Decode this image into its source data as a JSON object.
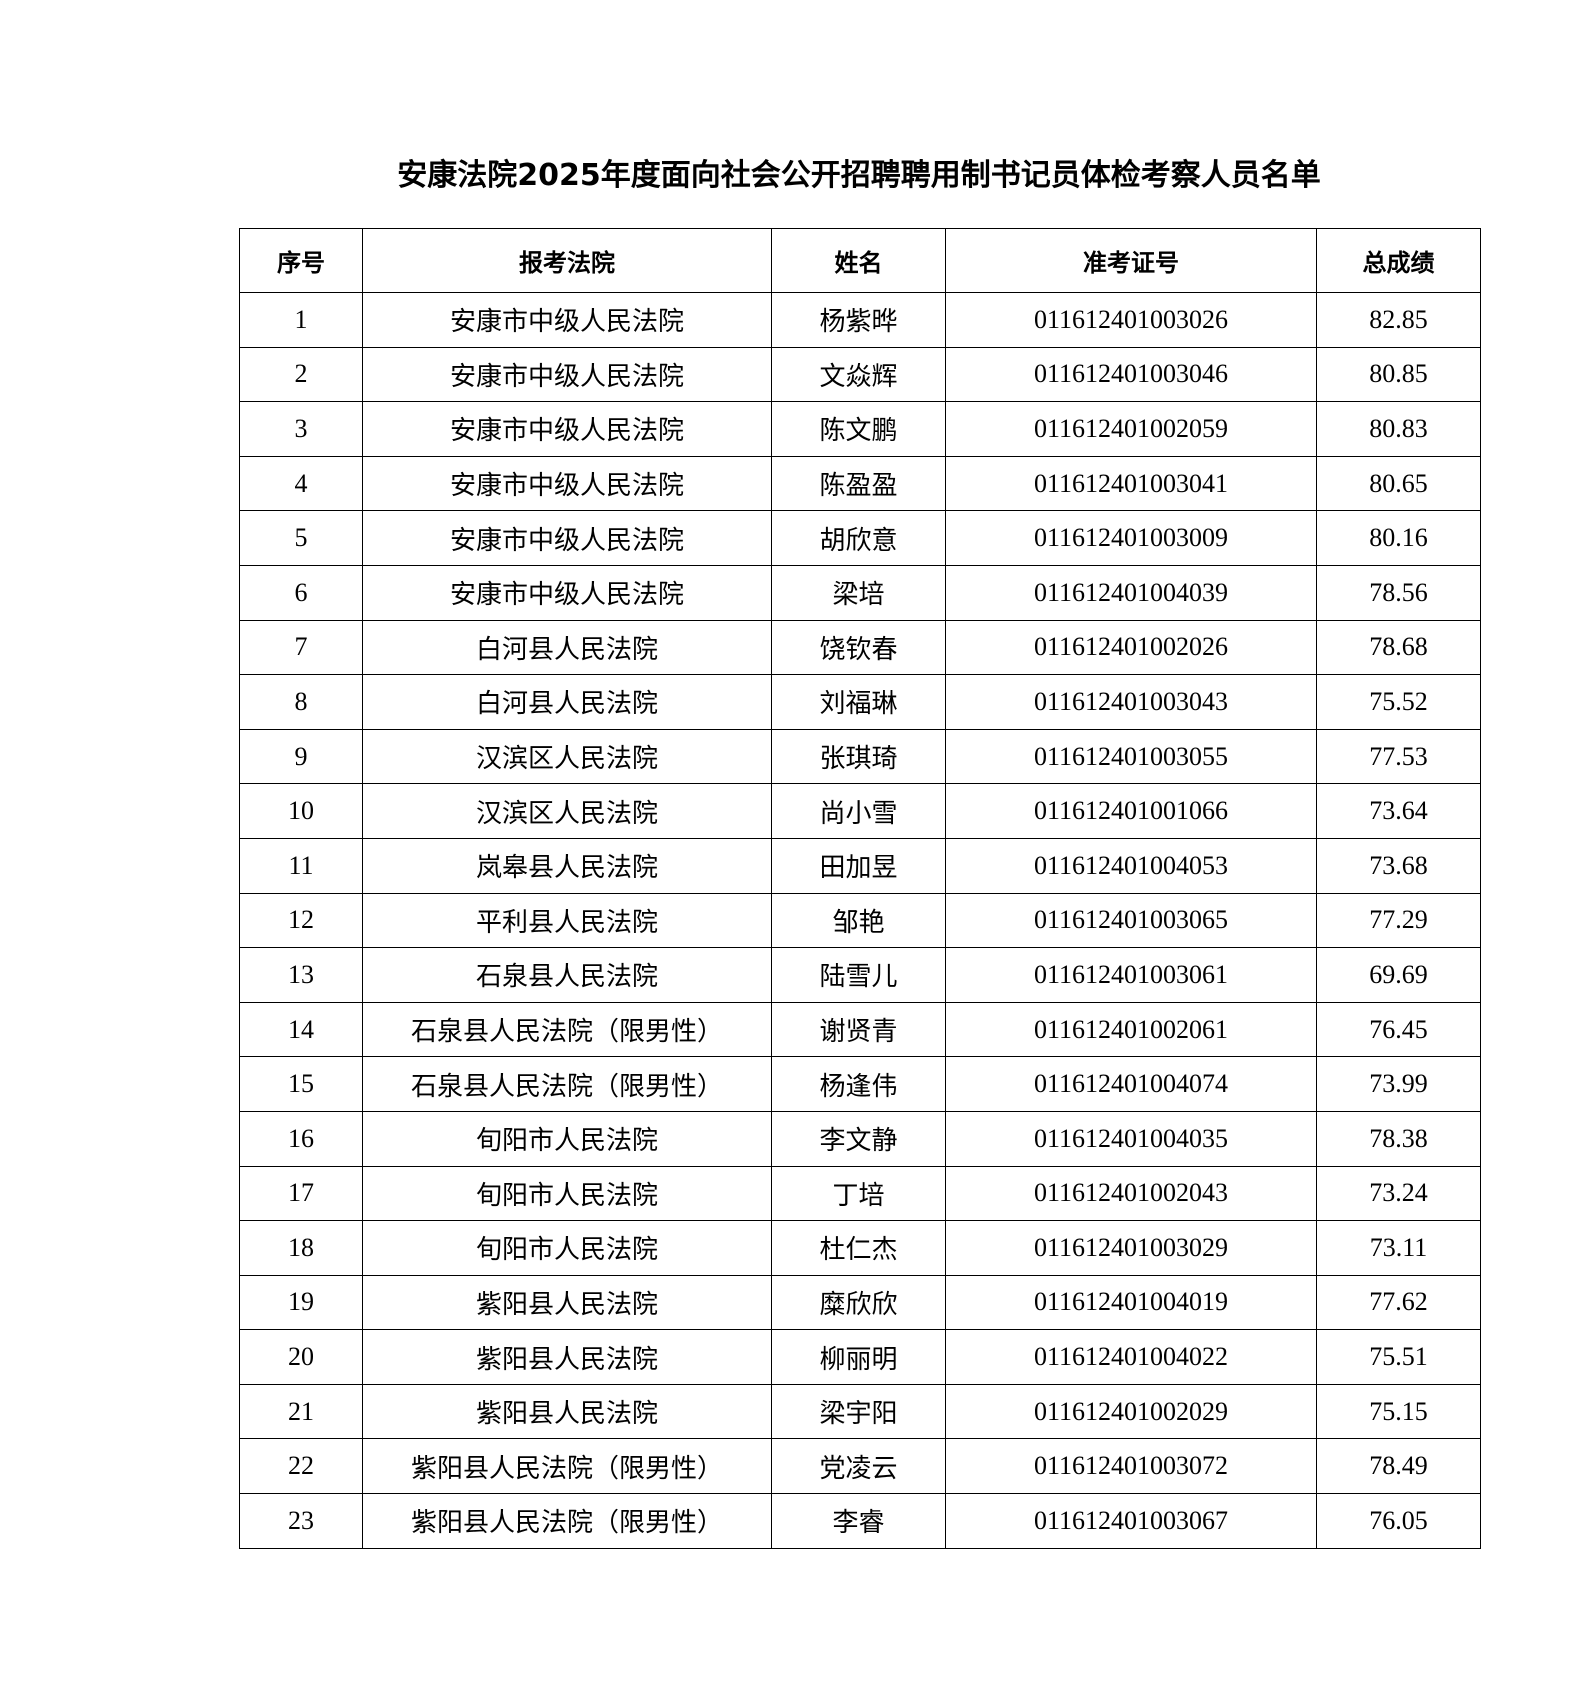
{
  "title": "安康法院2025年度面向社会公开招聘聘用制书记员体检考察人员名单",
  "headers": [
    "序号",
    "报考法院",
    "姓名",
    "准考证号",
    "总成绩"
  ],
  "rows": [
    [
      "1",
      "安康市中级人民法院",
      "杨紫晔",
      "011612401003026",
      "82.85"
    ],
    [
      "2",
      "安康市中级人民法院",
      "文焱辉",
      "011612401003046",
      "80.85"
    ],
    [
      "3",
      "安康市中级人民法院",
      "陈文鹏",
      "011612401002059",
      "80.83"
    ],
    [
      "4",
      "安康市中级人民法院",
      "陈盈盈",
      "011612401003041",
      "80.65"
    ],
    [
      "5",
      "安康市中级人民法院",
      "胡欣意",
      "011612401003009",
      "80.16"
    ],
    [
      "6",
      "安康市中级人民法院",
      "梁培",
      "011612401004039",
      "78.56"
    ],
    [
      "7",
      "白河县人民法院",
      "饶钦春",
      "011612401002026",
      "78.68"
    ],
    [
      "8",
      "白河县人民法院",
      "刘福琳",
      "011612401003043",
      "75.52"
    ],
    [
      "9",
      "汉滨区人民法院",
      "张琪琦",
      "011612401003055",
      "77.53"
    ],
    [
      "10",
      "汉滨区人民法院",
      "尚小雪",
      "011612401001066",
      "73.64"
    ],
    [
      "11",
      "岚皋县人民法院",
      "田加昱",
      "011612401004053",
      "73.68"
    ],
    [
      "12",
      "平利县人民法院",
      "邹艳",
      "011612401003065",
      "77.29"
    ],
    [
      "13",
      "石泉县人民法院",
      "陆雪儿",
      "011612401003061",
      "69.69"
    ],
    [
      "14",
      "石泉县人民法院（限男性）",
      "谢贤青",
      "011612401002061",
      "76.45"
    ],
    [
      "15",
      "石泉县人民法院（限男性）",
      "杨逢伟",
      "011612401004074",
      "73.99"
    ],
    [
      "16",
      "旬阳市人民法院",
      "李文静",
      "011612401004035",
      "78.38"
    ],
    [
      "17",
      "旬阳市人民法院",
      "丁培",
      "011612401002043",
      "73.24"
    ],
    [
      "18",
      "旬阳市人民法院",
      "杜仁杰",
      "011612401003029",
      "73.11"
    ],
    [
      "19",
      "紫阳县人民法院",
      "糜欣欣",
      "011612401004019",
      "77.62"
    ],
    [
      "20",
      "紫阳县人民法院",
      "柳丽明",
      "011612401004022",
      "75.51"
    ],
    [
      "21",
      "紫阳县人民法院",
      "梁宇阳",
      "011612401002029",
      "75.15"
    ],
    [
      "22",
      "紫阳县人民法院（限男性）",
      "党凌云",
      "011612401003072",
      "78.49"
    ],
    [
      "23",
      "紫阳县人民法院（限男性）",
      "李睿",
      "011612401003067",
      "76.05"
    ]
  ]
}
